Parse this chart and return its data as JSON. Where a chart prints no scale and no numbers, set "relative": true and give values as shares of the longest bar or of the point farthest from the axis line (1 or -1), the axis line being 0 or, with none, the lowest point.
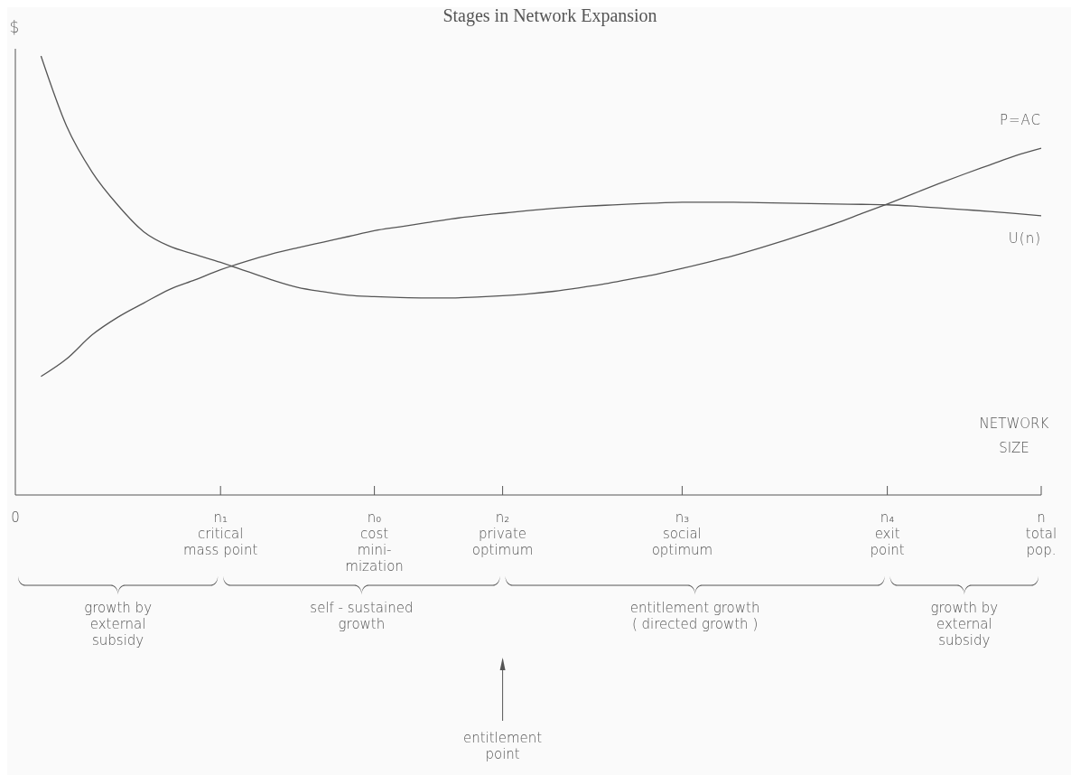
{
  "chart_data": {
    "type": "line",
    "title": "Stages in Network Expansion",
    "xlabel": "NETWORK SIZE",
    "ylabel": "$",
    "relative": true,
    "legend": false,
    "marker": "none",
    "categories": [
      "0",
      null,
      null,
      null,
      null,
      null,
      null,
      null,
      "n₁\ncritical\nmass point",
      null,
      null,
      null,
      null,
      null,
      "n₀\ncost\nmini-\nmization",
      null,
      null,
      null,
      null,
      "n₂\nprivate\noptimum",
      null,
      null,
      null,
      null,
      null,
      null,
      "n₃\nsocial\noptimum",
      null,
      null,
      null,
      null,
      null,
      null,
      null,
      "n₄\nexit\npoint",
      null,
      null,
      null,
      null,
      null,
      "n\ntotal\npop."
    ],
    "series": [
      {
        "name": "P=AC",
        "color": "#555555",
        "values": [
          null,
          1.0,
          0.84,
          0.735,
          0.66,
          0.6,
          0.567,
          0.548,
          0.53,
          0.51,
          0.49,
          0.473,
          0.463,
          0.455,
          0.452,
          0.45,
          0.449,
          0.449,
          0.451,
          0.454,
          0.458,
          0.464,
          0.472,
          0.481,
          0.492,
          0.503,
          0.516,
          0.53,
          0.545,
          0.562,
          0.58,
          0.599,
          0.619,
          0.641,
          0.663,
          0.686,
          0.709,
          0.731,
          0.752,
          0.773,
          0.79
        ]
      },
      {
        "name": "U(n)",
        "color": "#555555",
        "values": [
          null,
          0.27,
          0.31,
          0.365,
          0.405,
          0.437,
          0.468,
          0.49,
          0.513,
          0.532,
          0.549,
          0.563,
          0.576,
          0.589,
          0.602,
          0.611,
          0.62,
          0.629,
          0.636,
          0.642,
          0.648,
          0.653,
          0.657,
          0.66,
          0.663,
          0.665,
          0.667,
          0.667,
          0.667,
          0.666,
          0.665,
          0.664,
          0.663,
          0.662,
          0.661,
          0.658,
          0.654,
          0.65,
          0.646,
          0.641,
          0.636
        ]
      }
    ],
    "annotations": [
      "growth by\nexternal\nsubsidy",
      "self - sustained\ngrowth",
      "entitlement growth\n( directed growth )",
      "growth by\nexternal\nsubsidy",
      "entitlement\npoint"
    ]
  }
}
